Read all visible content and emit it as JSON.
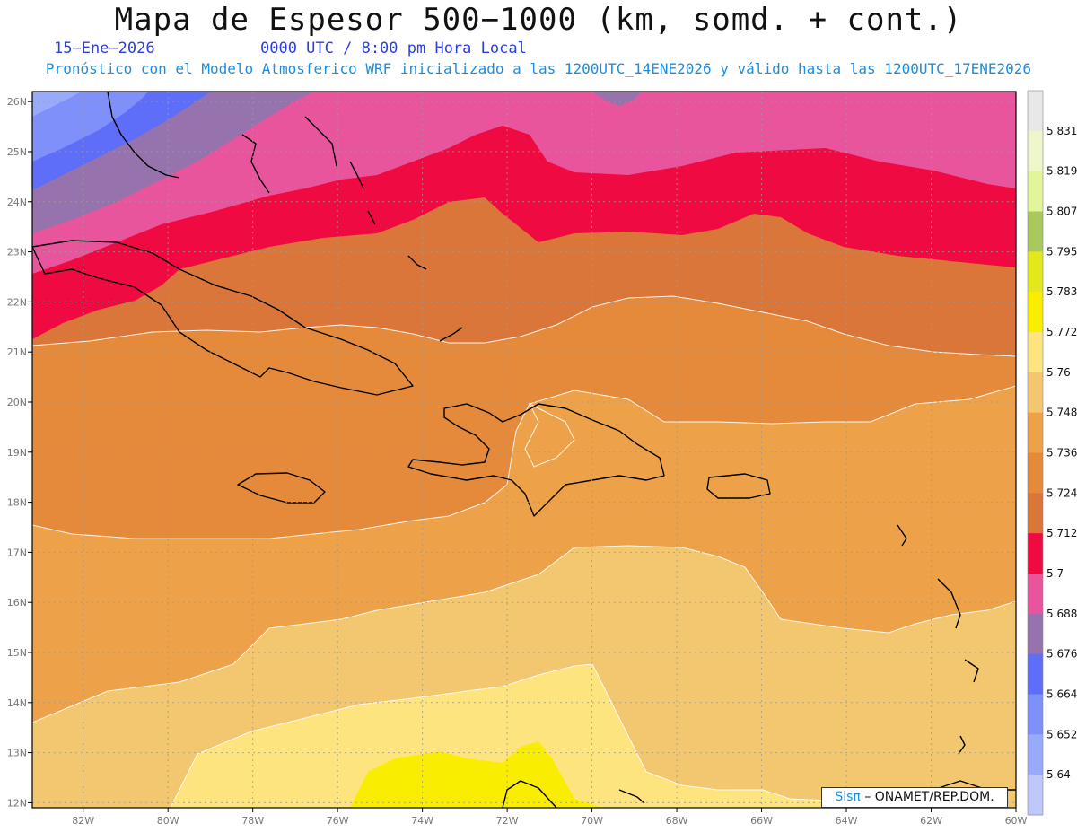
{
  "title": "Mapa de Espesor 500−1000 (km, somd. + cont.)",
  "date": "15−Ene−2026",
  "time": "0000 UTC / 8:00 pm Hora Local",
  "model_line": "Pronóstico con el Modelo Atmosferico WRF inicializado a las 1200UTC_14ENE2026 y válido hasta las  1200UTC_17ENE2026",
  "credit": {
    "brand": "Sisπ",
    "rest": "– ONAMET/REP.DOM."
  },
  "map": {
    "lon_range": [
      -83.2,
      -60
    ],
    "lat_range": [
      11.9,
      26.2
    ],
    "lon_ticks": [
      "82W",
      "80W",
      "78W",
      "76W",
      "74W",
      "72W",
      "70W",
      "68W",
      "66W",
      "64W",
      "62W",
      "60W"
    ],
    "lat_ticks": [
      "26N",
      "25N",
      "24N",
      "23N",
      "22N",
      "21N",
      "20N",
      "19N",
      "18N",
      "17N",
      "16N",
      "15N",
      "14N",
      "13N",
      "12N"
    ]
  },
  "colorbar": {
    "labels": [
      "5.831",
      "5.819",
      "5.807",
      "5.795",
      "5.783",
      "5.772",
      "5.76",
      "5.748",
      "5.736",
      "5.724",
      "5.712",
      "5.7",
      "5.688",
      "5.676",
      "5.664",
      "5.652",
      "5.64"
    ],
    "colors": [
      "#e8e8e8",
      "#eef6cc",
      "#e2f59a",
      "#a9c95c",
      "#e2e81c",
      "#f9ed00",
      "#fde47e",
      "#f2c76f",
      "#eda24a",
      "#e58a3b",
      "#da7639",
      "#ef0a41",
      "#e8559d",
      "#9773ad",
      "#5e6ef9",
      "#7f90fa",
      "#99aafb",
      "#bfc8fb"
    ]
  }
}
